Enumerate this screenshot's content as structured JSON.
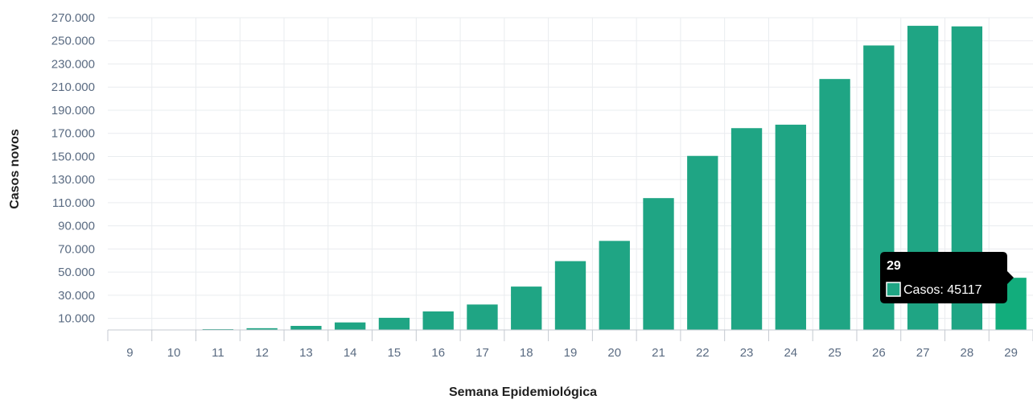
{
  "chart_data": {
    "type": "bar",
    "xlabel": "Semana Epidemiológica",
    "ylabel": "Casos novos",
    "categories": [
      "9",
      "10",
      "11",
      "12",
      "13",
      "14",
      "15",
      "16",
      "17",
      "18",
      "19",
      "20",
      "21",
      "22",
      "23",
      "24",
      "25",
      "26",
      "27",
      "28",
      "29"
    ],
    "series": [
      {
        "name": "Casos",
        "values": [
          0,
          0,
          300,
          1500,
          3500,
          6500,
          10500,
          16000,
          22000,
          37500,
          59500,
          77000,
          114000,
          150500,
          174500,
          177500,
          217000,
          246000,
          263000,
          262500,
          45117
        ]
      }
    ],
    "yticks": [
      "10.000",
      "30.000",
      "50.000",
      "70.000",
      "90.000",
      "110.000",
      "130.000",
      "150.000",
      "170.000",
      "190.000",
      "210.000",
      "230.000",
      "250.000",
      "270.000"
    ],
    "ytick_values": [
      10000,
      30000,
      50000,
      70000,
      90000,
      110000,
      130000,
      150000,
      170000,
      190000,
      210000,
      230000,
      250000,
      270000
    ],
    "ylim": [
      0,
      270000
    ],
    "grid": true,
    "colors": {
      "bar": "#1fa584",
      "bar_highlight": "#12ad7c",
      "grid": "#e9ecef"
    },
    "tooltip": {
      "category": "29",
      "title": "29",
      "label": "Casos: 45117"
    }
  }
}
